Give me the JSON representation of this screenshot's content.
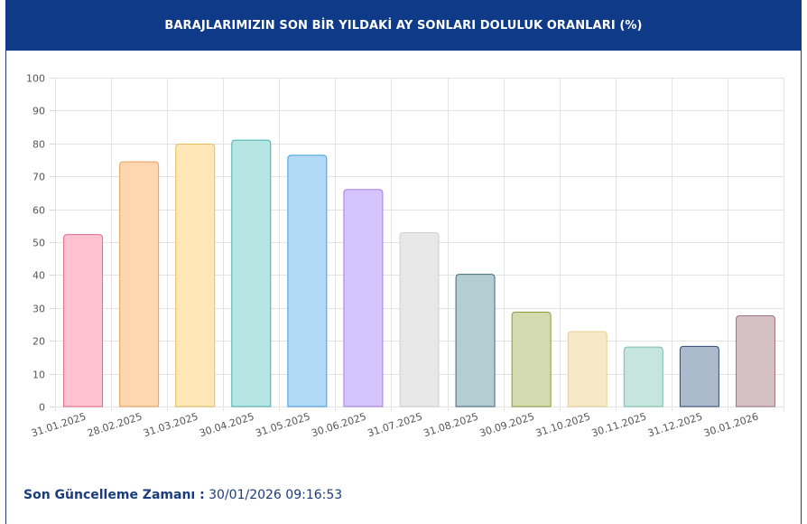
{
  "header": {
    "title": "BARAJLARIMIZIN SON BİR YILDAKİ AY SONLARI DOLULUK ORANLARI (%)"
  },
  "footer": {
    "label": "Son Güncelleme Zamanı :",
    "value": "30/01/2026 09:16:53"
  },
  "colors": {
    "header_bg": "#0e3a87",
    "footer_text": "#1b3c7c"
  },
  "chart_data": {
    "type": "bar",
    "title": "BARAJLARIMIZIN SON BİR YILDAKİ AY SONLARI DOLULUK ORANLARI (%)",
    "xlabel": "",
    "ylabel": "",
    "ylim": [
      0,
      100
    ],
    "yticks": [
      "0",
      "10",
      "20",
      "30",
      "40",
      "50",
      "60",
      "70",
      "80",
      "90",
      "100"
    ],
    "grid": true,
    "categories": [
      "31.01.2025",
      "28.02.2025",
      "31.03.2025",
      "30.04.2025",
      "31.05.2025",
      "30.06.2025",
      "31.07.2025",
      "31.08.2025",
      "30.09.2025",
      "31.10.2025",
      "30.11.2025",
      "31.12.2025",
      "30.01.2026"
    ],
    "values": [
      52.3,
      74.4,
      79.8,
      81.0,
      76.4,
      66.0,
      52.9,
      40.2,
      28.7,
      22.8,
      18.1,
      18.3,
      27.6
    ],
    "bar_fills": [
      "#ffc2d1",
      "#fed6b0",
      "#ffe7b8",
      "#b6e5e4",
      "#b2daf7",
      "#d6c4ff",
      "#e8e8e9",
      "#b3cdd2",
      "#d5dbb1",
      "#f6e9c7",
      "#c6e5de",
      "#acbacd",
      "#d5c0c6"
    ],
    "bar_strokes": [
      "#e56a87",
      "#eaa05a",
      "#e6bd59",
      "#45b0ab",
      "#3f9ee4",
      "#a87ce6",
      "#cfcfd2",
      "#3e6c73",
      "#8b9a3a",
      "#e5cf92",
      "#78bfae",
      "#2c4b74",
      "#a27380"
    ]
  }
}
